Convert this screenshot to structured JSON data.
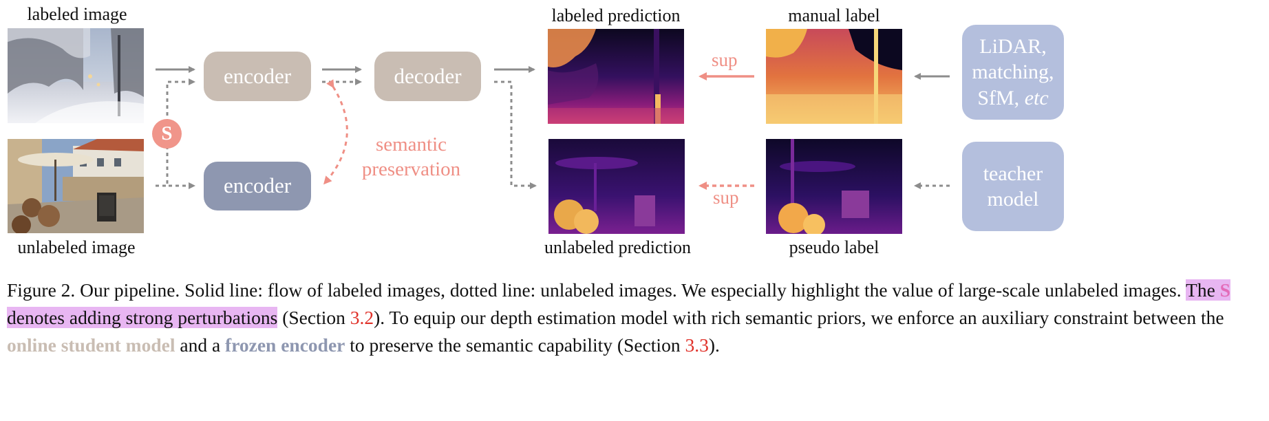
{
  "labels": {
    "labeled_image": "labeled image",
    "unlabeled_image": "unlabeled image",
    "labeled_prediction": "labeled prediction",
    "unlabeled_prediction": "unlabeled prediction",
    "manual_label": "manual label",
    "pseudo_label": "pseudo label"
  },
  "blocks": {
    "encoder_online": "encoder",
    "decoder": "decoder",
    "encoder_frozen": "encoder",
    "perturb_badge": "S",
    "semantic_line1": "semantic",
    "semantic_line2": "preservation",
    "sup_top": "sup",
    "sup_bottom": "sup",
    "source_top_line1": "LiDAR,",
    "source_top_line2": "matching,",
    "source_top_line3_a": "SfM, ",
    "source_top_line3_b": "etc",
    "source_bottom_line1": "teacher",
    "source_bottom_line2": "model"
  },
  "caption": {
    "p1": "Figure 2. Our pipeline. Solid line: flow of labeled images, dotted line: unlabeled images. We especially highlight the value of large-scale unlabeled images. ",
    "hl_a": "The ",
    "hl_s": "S",
    "hl_b": " denotes adding strong perturbations",
    "p2": " (Section ",
    "ref1": "3.2",
    "p3": "). To equip our depth estimation model with rich semantic priors, we enforce an auxiliary constraint between the ",
    "online": "online student model",
    "p4": " and a ",
    "frozen": "frozen encoder",
    "p5": " to preserve the semantic capability (Section ",
    "ref2": "3.3",
    "p6": ")."
  },
  "colors": {
    "encoder_online": "#c9bdb3",
    "encoder_frozen": "#8e97b0",
    "source_box": "#b4bfdd",
    "semantic_pink": "#ef8f85",
    "arrow_gray": "#8c8c8c",
    "reference_red": "#e0322a",
    "highlight": "#e8b6f2"
  }
}
